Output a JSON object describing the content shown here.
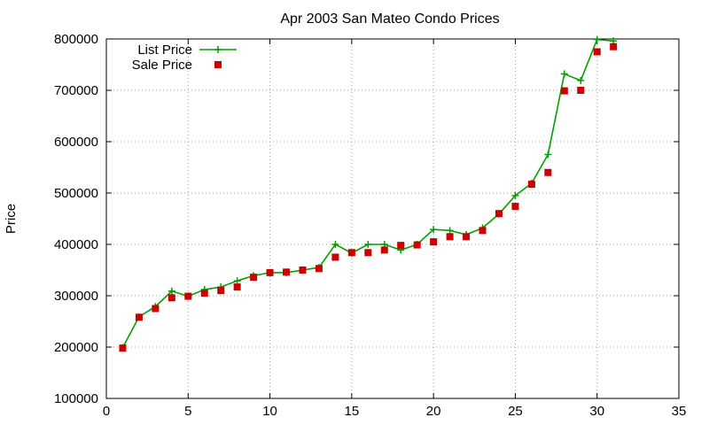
{
  "chart_data": {
    "type": "line",
    "title": "Apr 2003 San Mateo Condo Prices",
    "xlabel": "",
    "ylabel": "Price",
    "xlim": [
      0,
      35
    ],
    "ylim": [
      100000,
      800000
    ],
    "x_ticks": [
      "0",
      "5",
      "10",
      "15",
      "20",
      "25",
      "30",
      "35"
    ],
    "y_ticks": [
      "100000",
      "200000",
      "300000",
      "400000",
      "500000",
      "600000",
      "700000",
      "800000"
    ],
    "grid": true,
    "legend_position": "top-left",
    "series": [
      {
        "name": "List Price",
        "color": "#00a000",
        "marker": "plus",
        "style": "line-points",
        "x": [
          1,
          2,
          3,
          4,
          5,
          6,
          7,
          8,
          9,
          10,
          11,
          12,
          13,
          14,
          15,
          16,
          17,
          18,
          19,
          20,
          21,
          22,
          23,
          24,
          25,
          26,
          27,
          28,
          29,
          30,
          31
        ],
        "y": [
          199000,
          259000,
          279000,
          309000,
          299000,
          312000,
          317000,
          329000,
          339000,
          345000,
          345000,
          350000,
          355000,
          400000,
          383000,
          400000,
          400000,
          389000,
          400000,
          429000,
          427000,
          419000,
          432000,
          459000,
          495000,
          519000,
          575000,
          732000,
          719000,
          799000,
          796000
        ]
      },
      {
        "name": "Sale Price",
        "color": "#cc0000",
        "marker": "square",
        "style": "points",
        "x": [
          1,
          2,
          3,
          4,
          5,
          6,
          7,
          8,
          9,
          10,
          11,
          12,
          13,
          14,
          15,
          16,
          17,
          18,
          19,
          20,
          21,
          22,
          23,
          24,
          25,
          26,
          27,
          28,
          29,
          30,
          31
        ],
        "y": [
          198000,
          258000,
          275000,
          296000,
          299000,
          305000,
          310000,
          317000,
          336000,
          345000,
          346000,
          350000,
          353000,
          375000,
          384000,
          384000,
          389000,
          398000,
          399000,
          405000,
          415000,
          415000,
          427000,
          460000,
          474000,
          517000,
          540000,
          699000,
          700000,
          775000,
          785000
        ]
      }
    ]
  }
}
